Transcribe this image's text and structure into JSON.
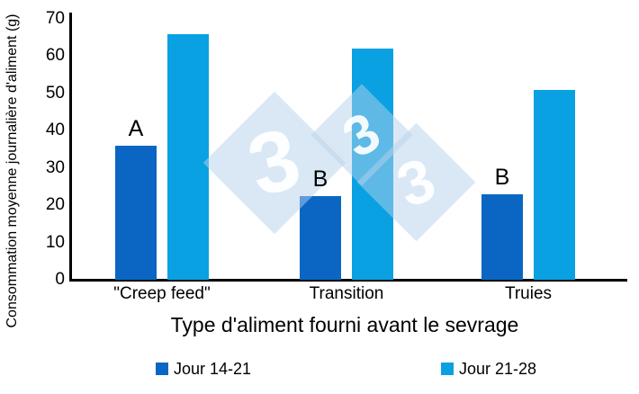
{
  "chart_data": {
    "type": "bar",
    "title": "",
    "categories": [
      "\"Creep feed\"",
      "Transition",
      "Truies"
    ],
    "series": [
      {
        "name": "Jour 14-21",
        "color": "#0b66c3",
        "values": [
          36,
          22.5,
          23
        ]
      },
      {
        "name": "Jour 21-28",
        "color": "#09a1e1",
        "values": [
          66,
          62,
          51
        ]
      }
    ],
    "bar_annotations": [
      {
        "text": "A",
        "category_index": 0,
        "series_index": 0
      },
      {
        "text": "B",
        "category_index": 1,
        "series_index": 0
      },
      {
        "text": "B",
        "category_index": 2,
        "series_index": 0
      }
    ],
    "xlabel": "Type d'aliment fourni avant le sevrage",
    "ylabel": "Consommation moyenne journalière d'aliment (g)",
    "ylim": [
      0,
      70
    ],
    "yticks": [
      0,
      10,
      20,
      30,
      40,
      50,
      60,
      70
    ],
    "grid": false,
    "legend_position": "bottom",
    "axis_color": "#000000"
  },
  "watermark": {
    "name": "3tres3-333-logo",
    "digit": "3",
    "diamond_color": "#d9e7f4",
    "digit_color": "#ffffff"
  }
}
